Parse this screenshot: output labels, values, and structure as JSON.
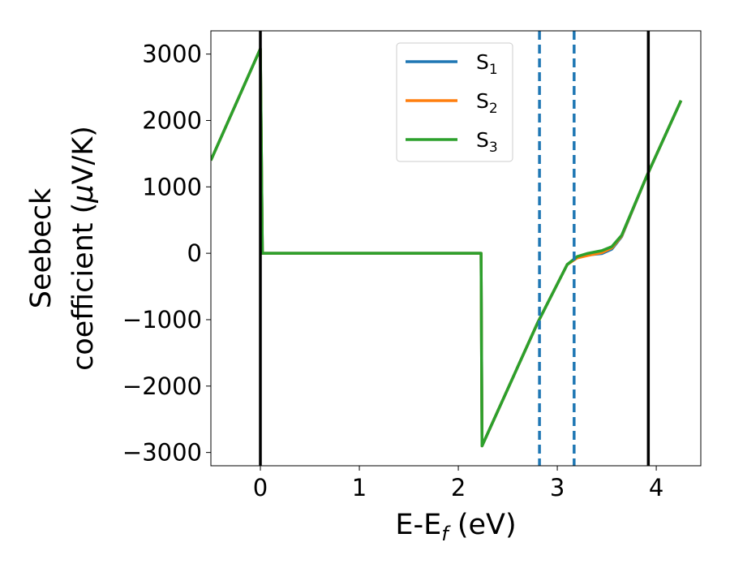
{
  "chart_data": {
    "type": "line",
    "xlabel": "E-E",
    "xlabel_sub": "f",
    "xlabel_unit": " (eV)",
    "ylabel_line1": "Seebeck",
    "ylabel_line2": "coefficient  (",
    "ylabel_mu": "μ",
    "ylabel_unit": "V/K)",
    "xlim": [
      -0.5,
      4.45
    ],
    "ylim": [
      -3200,
      3350
    ],
    "xticks": [
      0,
      1,
      2,
      3,
      4
    ],
    "xtick_labels": [
      "0",
      "1",
      "2",
      "3",
      "4"
    ],
    "yticks": [
      3000,
      2000,
      1000,
      0,
      -1000,
      -2000,
      -3000
    ],
    "ytick_labels": [
      "3000",
      "2000",
      "1000",
      "0",
      "−1000",
      "−2000",
      "−3000"
    ],
    "grid": false,
    "legend_position": "top-center",
    "series": [
      {
        "name": "S",
        "sub": "1",
        "color": "#1f77b4",
        "x": [
          -0.5,
          0.0,
          0.02,
          2.23,
          2.24,
          2.8,
          3.1,
          3.2,
          3.3,
          3.45,
          3.55,
          3.65,
          3.9,
          4.25
        ],
        "y": [
          1400,
          3080,
          0,
          0,
          -2900,
          -1050,
          -170,
          -60,
          -25,
          -5,
          60,
          250,
          1150,
          2300
        ]
      },
      {
        "name": "S",
        "sub": "2",
        "color": "#ff7f0e",
        "x": [
          -0.5,
          0.0,
          0.02,
          2.23,
          2.24,
          2.8,
          3.1,
          3.2,
          3.3,
          3.45,
          3.55,
          3.65,
          3.9,
          4.25
        ],
        "y": [
          1400,
          3080,
          0,
          0,
          -2900,
          -1050,
          -170,
          -70,
          -35,
          10,
          80,
          260,
          1150,
          2300
        ]
      },
      {
        "name": "S",
        "sub": "3",
        "color": "#2ca02c",
        "x": [
          -0.5,
          0.0,
          0.02,
          2.23,
          2.24,
          2.8,
          3.1,
          3.2,
          3.3,
          3.45,
          3.55,
          3.65,
          3.9,
          4.25
        ],
        "y": [
          1400,
          3080,
          0,
          0,
          -2900,
          -1050,
          -170,
          -50,
          -5,
          40,
          100,
          270,
          1150,
          2300
        ]
      }
    ],
    "vlines_solid": [
      0.0,
      3.92
    ],
    "vlines_solid_color": "#000000",
    "vlines_dashed": [
      2.82,
      3.17
    ],
    "vlines_dashed_color": "#1f77b4"
  }
}
